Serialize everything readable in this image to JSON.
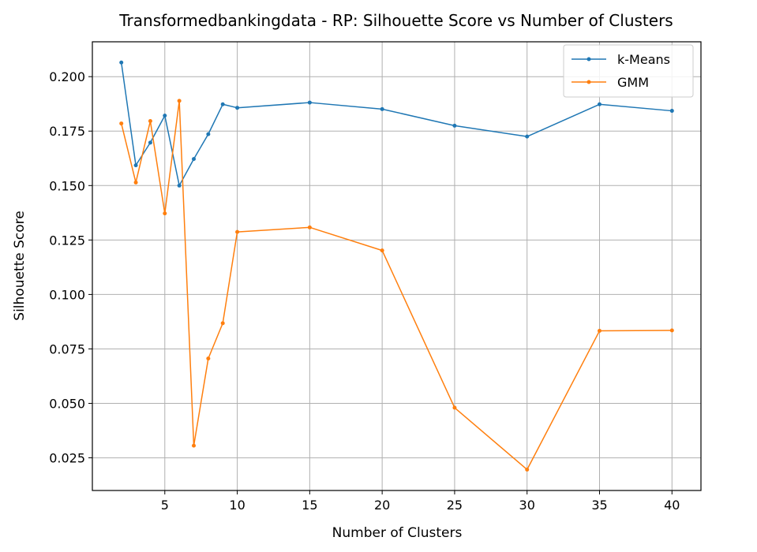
{
  "chart_data": {
    "type": "line",
    "title": "Transformedbankingdata - RP: Silhouette Score vs Number of Clusters",
    "xlabel": "Number of Clusters",
    "ylabel": "Silhouette Score",
    "xlim": [
      0,
      42
    ],
    "ylim": [
      0.01,
      0.216
    ],
    "xticks": [
      5,
      10,
      15,
      20,
      25,
      30,
      35,
      40
    ],
    "yticks": [
      0.025,
      0.05,
      0.075,
      0.1,
      0.125,
      0.15,
      0.175,
      0.2
    ],
    "ytick_labels": [
      "0.025",
      "0.050",
      "0.075",
      "0.100",
      "0.125",
      "0.150",
      "0.175",
      "0.200"
    ],
    "grid": true,
    "legend_position": "top-right",
    "x": [
      2,
      3,
      4,
      5,
      6,
      7,
      8,
      9,
      10,
      15,
      20,
      25,
      30,
      35,
      40
    ],
    "series": [
      {
        "name": "k-Means",
        "color": "#1f77b4",
        "values": [
          0.2065,
          0.1593,
          0.1697,
          0.1821,
          0.15,
          0.1622,
          0.1736,
          0.1873,
          0.1857,
          0.1881,
          0.1851,
          0.1775,
          0.1725,
          0.1873,
          0.1843
        ]
      },
      {
        "name": "GMM",
        "color": "#ff7f0e",
        "values": [
          0.1785,
          0.1514,
          0.1796,
          0.1372,
          0.1889,
          0.0306,
          0.0706,
          0.0868,
          0.1287,
          0.1308,
          0.1202,
          0.048,
          0.0196,
          0.0833,
          0.0835
        ]
      }
    ]
  }
}
